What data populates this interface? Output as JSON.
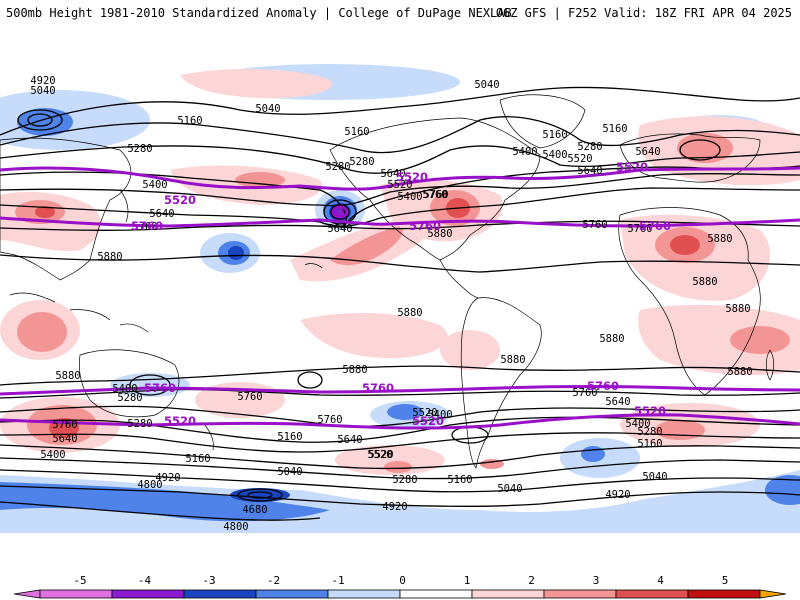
{
  "header": {
    "title": "500mb Height 1981-2010 Standardized Anomaly | College of DuPage NEXLAB",
    "subtitle": "06Z GFS | F252 Valid: 18Z FRI APR 04 2025"
  },
  "colors": {
    "neg5": "#e070e0",
    "neg4": "#8c1ad0",
    "neg3": "#1a45c0",
    "neg2": "#4f83ea",
    "neg1": "#c6dcfa",
    "zero": "#ffffff",
    "pos1": "#fcd6d6",
    "pos2": "#f49595",
    "pos3": "#e05050",
    "pos4": "#c21010",
    "pos5": "#f5a300",
    "contour": "#000000",
    "highlight": "#9a10c8",
    "coast": "#000000"
  },
  "colorbar": {
    "ticks": [
      "-5",
      "-4",
      "-3",
      "-2",
      "-1",
      "0",
      "1",
      "2",
      "3",
      "4",
      "5"
    ]
  },
  "contour_labels": [
    {
      "text": "4920"
    },
    {
      "text": "5040"
    },
    {
      "text": "5040"
    },
    {
      "text": "5160"
    },
    {
      "text": "5280"
    },
    {
      "text": "5400"
    },
    {
      "text": "5640"
    },
    {
      "text": "5760"
    },
    {
      "text": "5880"
    },
    {
      "text": "5160"
    },
    {
      "text": "5040"
    },
    {
      "text": "5160"
    },
    {
      "text": "5160"
    },
    {
      "text": "5280"
    },
    {
      "text": "5400"
    },
    {
      "text": "5400"
    },
    {
      "text": "5520"
    },
    {
      "text": "5640"
    },
    {
      "text": "5760"
    },
    {
      "text": "5280"
    },
    {
      "text": "5640"
    },
    {
      "text": "5880"
    },
    {
      "text": "5880"
    },
    {
      "text": "5880"
    },
    {
      "text": "5880"
    },
    {
      "text": "5880"
    },
    {
      "text": "5760"
    },
    {
      "text": "5520"
    },
    {
      "text": "5280"
    },
    {
      "text": "5760"
    },
    {
      "text": "5640"
    },
    {
      "text": "5400"
    },
    {
      "text": "5760"
    },
    {
      "text": "5280"
    },
    {
      "text": "5400"
    },
    {
      "text": "5640"
    },
    {
      "text": "5520"
    },
    {
      "text": "5280"
    },
    {
      "text": "5040"
    },
    {
      "text": "5160"
    },
    {
      "text": "5400"
    },
    {
      "text": "5040"
    },
    {
      "text": "5160"
    },
    {
      "text": "4920"
    },
    {
      "text": "4800"
    },
    {
      "text": "4680"
    },
    {
      "text": "4800"
    },
    {
      "text": "4920"
    },
    {
      "text": "5040"
    },
    {
      "text": "4920"
    },
    {
      "text": "5400"
    },
    {
      "text": "5280"
    },
    {
      "text": "5160"
    },
    {
      "text": "5760"
    },
    {
      "text": "5640"
    },
    {
      "text": "5880"
    },
    {
      "text": "5760"
    },
    {
      "text": "5880"
    },
    {
      "text": "5880"
    },
    {
      "text": "5160"
    },
    {
      "text": "5640"
    },
    {
      "text": "5760"
    },
    {
      "text": "5880"
    },
    {
      "text": "5880"
    },
    {
      "text": "5760"
    },
    {
      "text": "5400"
    },
    {
      "text": "5280"
    },
    {
      "text": "5520"
    },
    {
      "text": "5520"
    },
    {
      "text": "5640"
    }
  ],
  "highlight_labels": [
    {
      "text": "5520"
    },
    {
      "text": "5760"
    },
    {
      "text": "5520"
    },
    {
      "text": "5760"
    },
    {
      "text": "5520"
    },
    {
      "text": "5760"
    },
    {
      "text": "5760"
    },
    {
      "text": "5520"
    },
    {
      "text": "5760"
    },
    {
      "text": "5760"
    },
    {
      "text": "5520"
    },
    {
      "text": "5520"
    }
  ]
}
